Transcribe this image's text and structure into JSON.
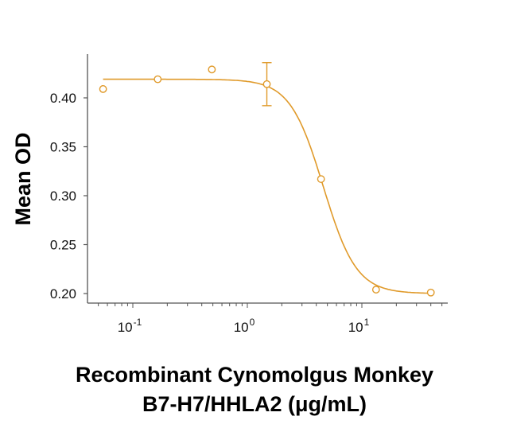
{
  "chart_data": {
    "type": "scatter",
    "title": "",
    "xlabel_line1": "Recombinant Cynomolgus Monkey",
    "xlabel_line2": "B7-H7/HHLA2 (μg/mL)",
    "ylabel": "Mean OD",
    "xscale": "log",
    "xlim": [
      0.045,
      60
    ],
    "ylim": [
      0.19,
      0.44
    ],
    "x_ticks": [
      {
        "value": 0.1,
        "base": "10",
        "exp": "-1"
      },
      {
        "value": 1,
        "base": "10",
        "exp": "0"
      },
      {
        "value": 10,
        "base": "10",
        "exp": "1"
      }
    ],
    "y_ticks": [
      "0.20",
      "0.25",
      "0.30",
      "0.35",
      "0.40"
    ],
    "grid": false,
    "legend": null,
    "color": "#E09A2A",
    "series": [
      {
        "name": "Mean OD",
        "x": [
          0.055,
          0.165,
          0.49,
          1.48,
          4.4,
          13.3,
          40
        ],
        "y": [
          0.409,
          0.419,
          0.429,
          0.414,
          0.317,
          0.204,
          0.201
        ],
        "error": [
          null,
          null,
          null,
          0.022,
          null,
          null,
          null
        ]
      }
    ],
    "fit": {
      "type": "4PL",
      "top": 0.419,
      "bottom": 0.2,
      "ec50": 4.6,
      "hill": 3.0
    }
  }
}
